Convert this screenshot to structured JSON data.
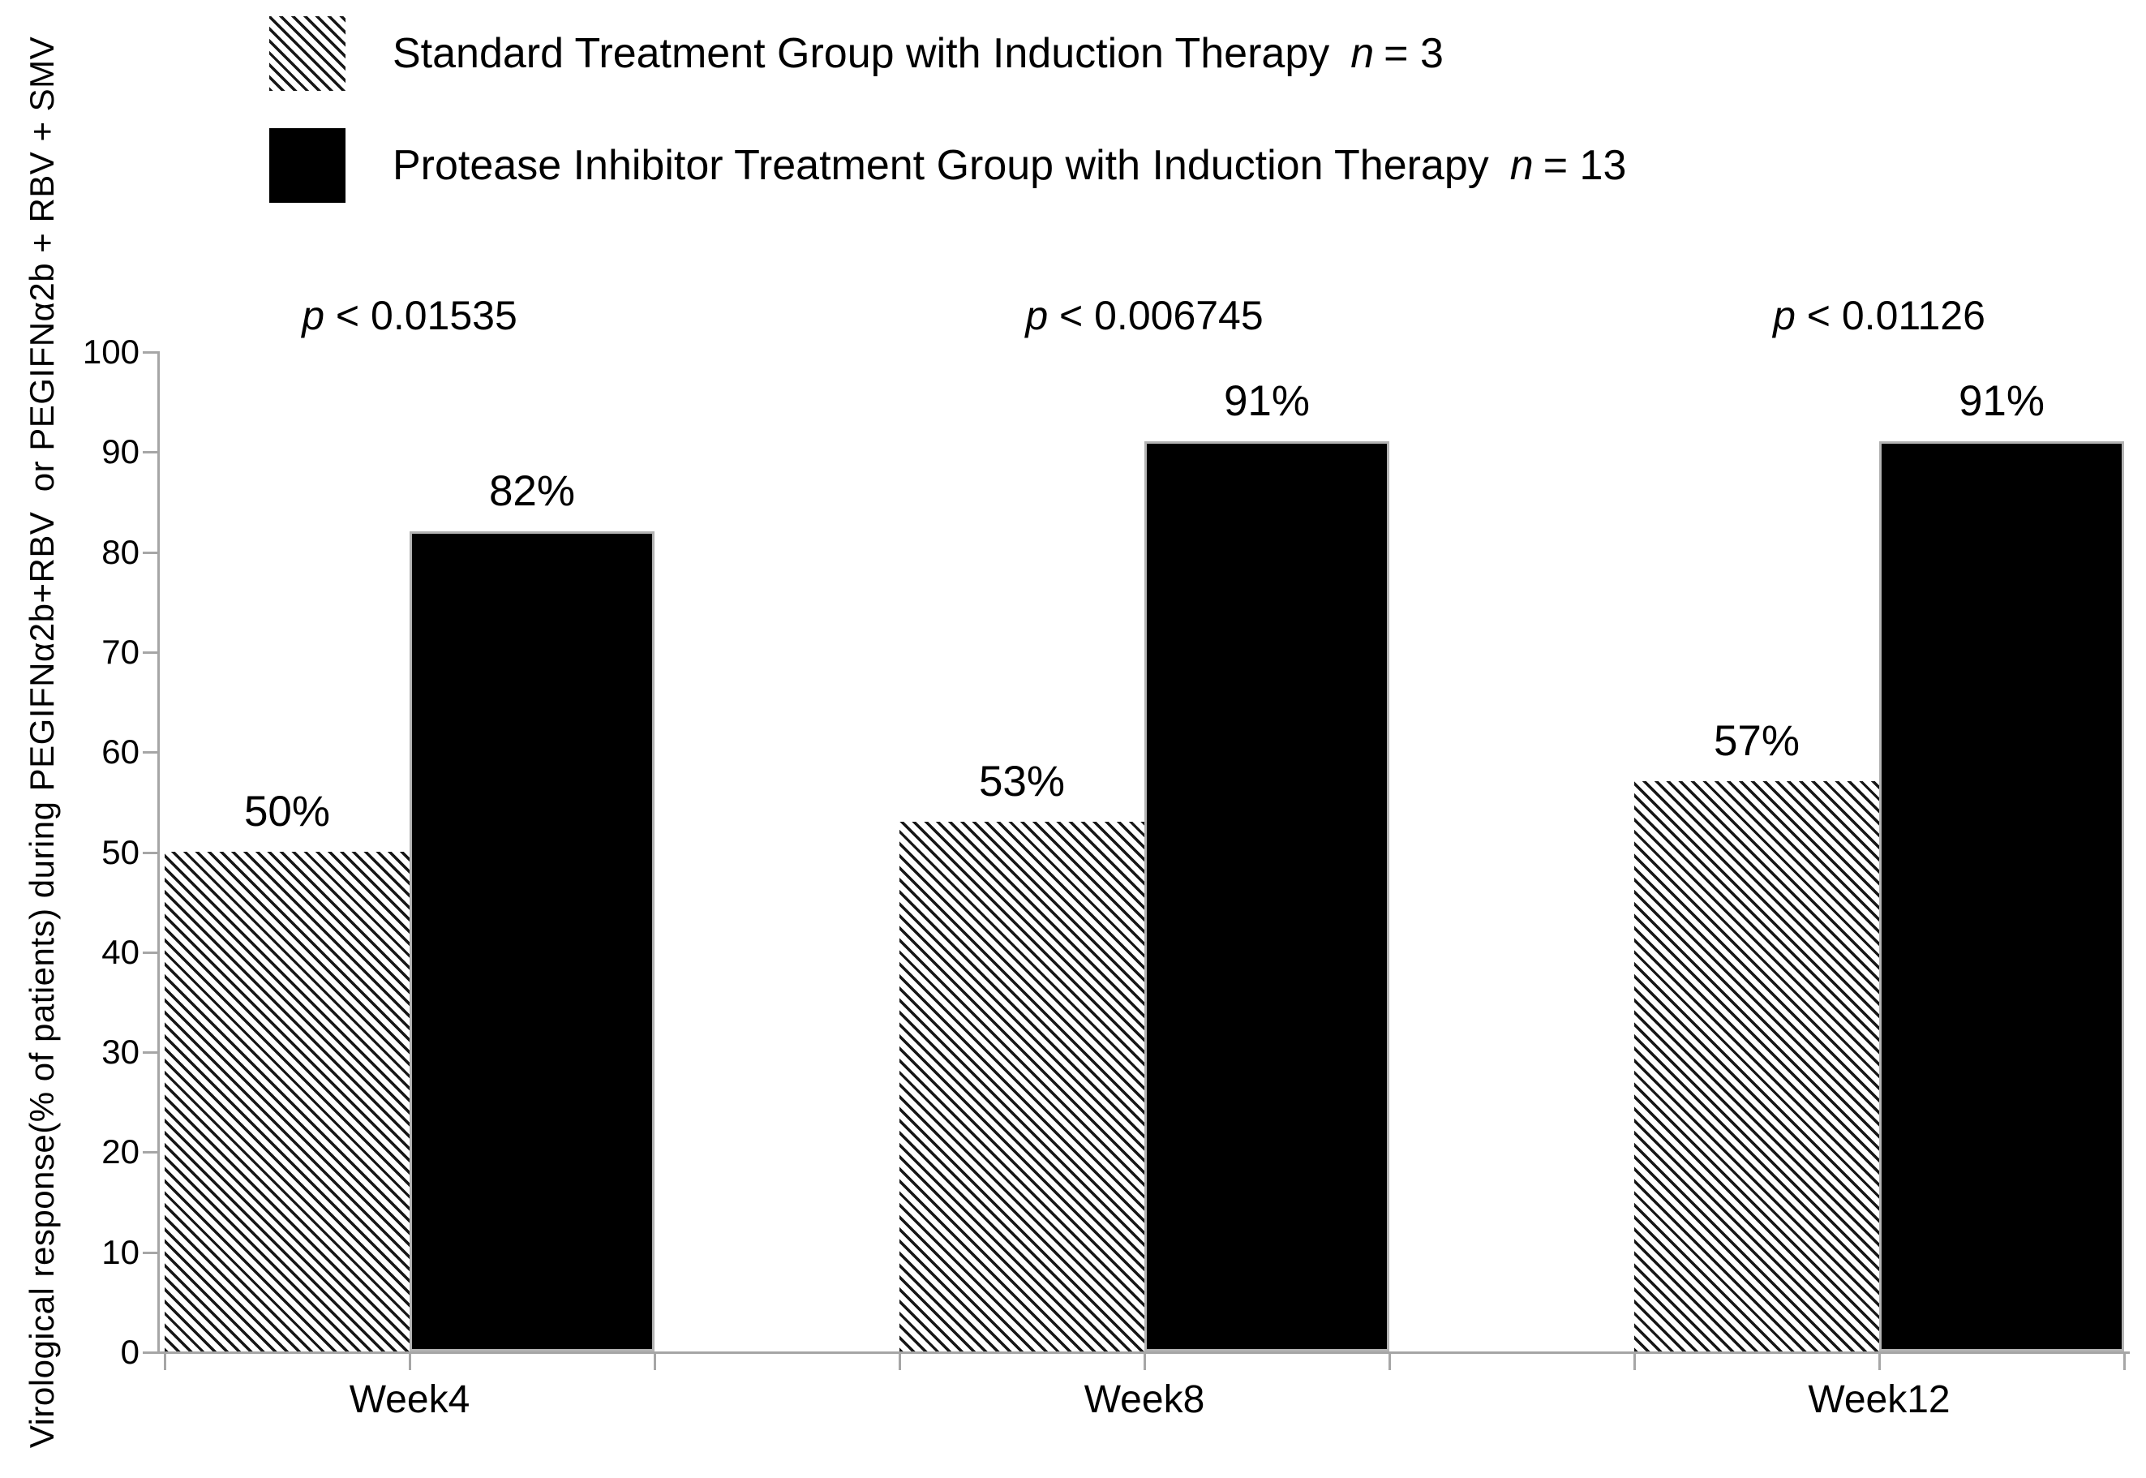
{
  "legend": {
    "items": [
      {
        "swatch": "hatched",
        "label": "Standard Treatment Group with Induction Therapy",
        "n_var": "n",
        "n_eq": "= 3"
      },
      {
        "swatch": "solid-black",
        "label": "Protease Inhibitor Treatment Group with Induction Therapy",
        "n_var": "n",
        "n_eq": "= 13"
      }
    ]
  },
  "chart_data": {
    "type": "bar",
    "categories": [
      "Week4",
      "Week8",
      "Week12"
    ],
    "series": [
      {
        "name": "Standard Treatment Group with Induction Therapy",
        "n": 3,
        "style": "hatched",
        "values": [
          50,
          53,
          57
        ],
        "labels": [
          "50%",
          "53%",
          "57%"
        ]
      },
      {
        "name": "Protease Inhibitor Treatment Group with Induction Therapy",
        "n": 13,
        "style": "solid-black",
        "values": [
          82,
          91,
          91
        ],
        "labels": [
          "82%",
          "91%",
          "91%"
        ]
      }
    ],
    "p_values": [
      {
        "var": "p",
        "text": "< 0.01535"
      },
      {
        "var": "p",
        "text": "< 0.006745"
      },
      {
        "var": "p",
        "text": "< 0.01126"
      }
    ],
    "ylabel": "Virological response(% of patients) during PEGIFNα2b+RBV  or PEGIFNα2b + RBV + SMV",
    "xlabel": "",
    "ylim": [
      0,
      100
    ],
    "yticks": [
      0,
      10,
      20,
      30,
      40,
      50,
      60,
      70,
      80,
      90,
      100
    ],
    "grid": false,
    "legend_position": "top-left"
  },
  "colors": {
    "text": "#000000",
    "axis": "#a6a6a6",
    "bar_solid": "#000000",
    "bar_border": "#b3b3b3",
    "hatch_line": "#161616",
    "hatch_bg": "#ffffff"
  }
}
